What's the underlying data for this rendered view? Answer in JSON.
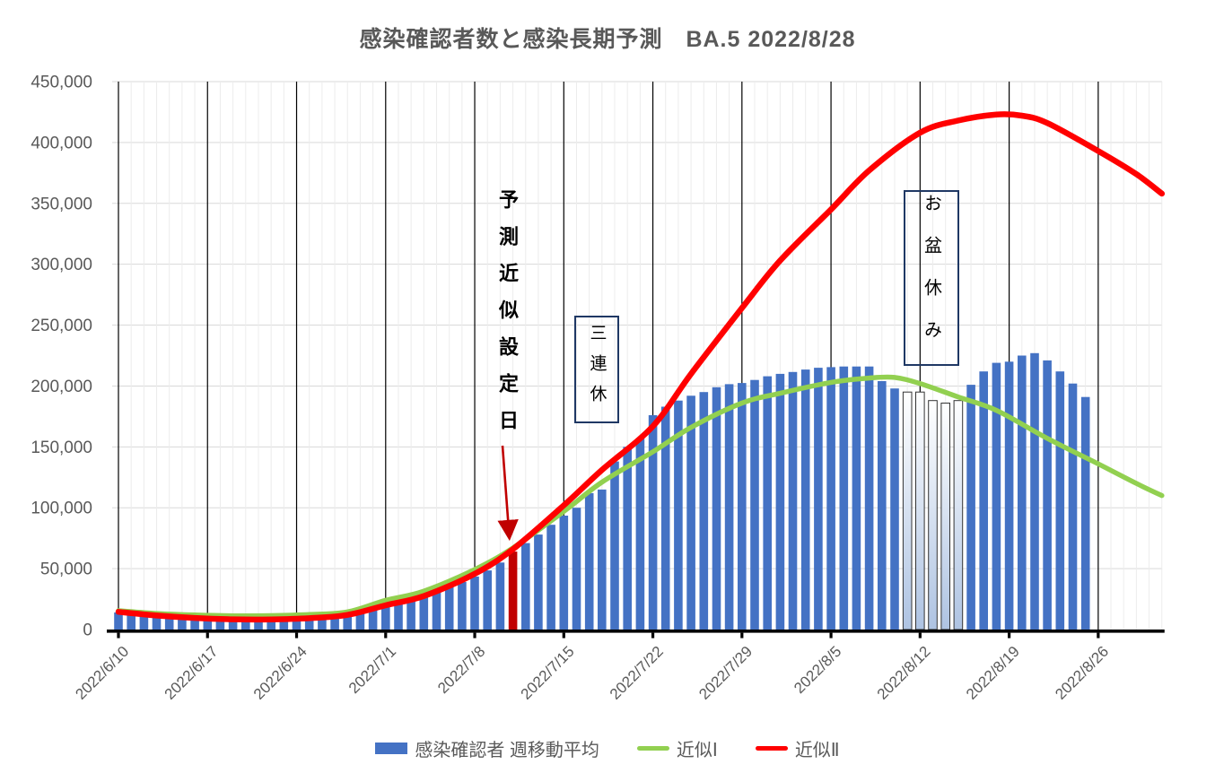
{
  "title": "感染確認者数と感染長期予測　BA.5 2022/8/28",
  "annotations": {
    "set_date_label": "予測近似設定日",
    "holiday3_label": "三連休",
    "obon_label": "お盆休み"
  },
  "legend": {
    "bars_label": "感染確認者 週移動平均",
    "approx1_label": "近似Ⅰ",
    "approx2_label": "近似Ⅱ"
  },
  "colors": {
    "bar": "#4472C4",
    "bar_holiday_top": "#FFFFFF",
    "bar_holiday_bottom": "#AEC3E2",
    "bar_holiday_border": "#333333",
    "highlight_bar": "#C00000",
    "approx1": "#92D050",
    "approx2": "#FF0000",
    "grid_major": "#000000",
    "grid_minor": "#ECECEC",
    "grid_horizontal": "#D9D9D9",
    "axis": "#000000",
    "axis_text": "#595959",
    "annotation_box_border": "#1F3864",
    "arrow": "#C00000"
  },
  "chart_data": {
    "type": "bar+line",
    "title": "感染確認者数と感染長期予測　BA.5 2022/8/28",
    "y_axis": {
      "min": 0,
      "max": 450000,
      "step": 50000,
      "tick_labels": [
        "0",
        "50,000",
        "100,000",
        "150,000",
        "200,000",
        "250,000",
        "300,000",
        "350,000",
        "400,000",
        "450,000"
      ]
    },
    "x_axis": {
      "tick_labels": [
        "2022/6/10",
        "2022/6/17",
        "2022/6/24",
        "2022/7/1",
        "2022/7/8",
        "2022/7/15",
        "2022/7/22",
        "2022/7/29",
        "2022/8/5",
        "2022/8/12",
        "2022/8/19",
        "2022/8/26"
      ],
      "days_per_tick": 7,
      "start_date": "2022/6/10",
      "line_end_day": 82
    },
    "bars": {
      "name": "感染確認者 週移動平均",
      "start_day": 0,
      "values": [
        14000,
        13300,
        12800,
        12300,
        11900,
        11600,
        11300,
        11100,
        10900,
        10800,
        10700,
        10700,
        10800,
        11000,
        11300,
        11800,
        12400,
        13100,
        14200,
        15800,
        17500,
        19800,
        22000,
        24500,
        27500,
        31000,
        35000,
        39000,
        43500,
        48500,
        55000,
        64000,
        71000,
        78000,
        86000,
        93500,
        100000,
        112000,
        115000,
        138000,
        150000,
        157000,
        176000,
        183000,
        188000,
        192000,
        195000,
        199000,
        201500,
        202500,
        205000,
        208000,
        210000,
        211500,
        213500,
        215000,
        215500,
        216000,
        216000,
        216000,
        204000,
        198000,
        195000,
        195000,
        188000,
        186000,
        188000,
        201000,
        212000,
        219000,
        220000,
        225000,
        227000,
        221000,
        212000,
        202000,
        191000
      ],
      "highlight": {
        "day": 31,
        "date": "2022/7/11"
      },
      "holiday_days": [
        62,
        63,
        64,
        65,
        66
      ],
      "holiday_dates": [
        "2022/8/11",
        "2022/8/12",
        "2022/8/13",
        "2022/8/14",
        "2022/8/15"
      ]
    },
    "lines": [
      {
        "name": "近似Ⅰ",
        "points": [
          [
            0,
            15500
          ],
          [
            3,
            13200
          ],
          [
            6,
            11900
          ],
          [
            9,
            11300
          ],
          [
            12,
            11400
          ],
          [
            15,
            12300
          ],
          [
            18,
            14500
          ],
          [
            21,
            24000
          ],
          [
            24,
            31500
          ],
          [
            28,
            49300
          ],
          [
            31,
            67000
          ],
          [
            35,
            97000
          ],
          [
            38,
            121000
          ],
          [
            42,
            146000
          ],
          [
            45,
            166000
          ],
          [
            49,
            186000
          ],
          [
            52,
            194000
          ],
          [
            56,
            203000
          ],
          [
            59,
            206500
          ],
          [
            61,
            207000
          ],
          [
            63,
            202000
          ],
          [
            66,
            191000
          ],
          [
            69,
            180000
          ],
          [
            73,
            157000
          ],
          [
            77,
            136000
          ],
          [
            80,
            120000
          ],
          [
            82,
            110000
          ]
        ]
      },
      {
        "name": "近似Ⅱ",
        "points": [
          [
            0,
            14500
          ],
          [
            3,
            11500
          ],
          [
            6,
            9500
          ],
          [
            9,
            8400
          ],
          [
            12,
            8300
          ],
          [
            15,
            9300
          ],
          [
            18,
            12000
          ],
          [
            21,
            19900
          ],
          [
            24,
            27500
          ],
          [
            28,
            45700
          ],
          [
            31,
            66000
          ],
          [
            35,
            102000
          ],
          [
            38,
            131000
          ],
          [
            42,
            167000
          ],
          [
            45,
            210000
          ],
          [
            49,
            264000
          ],
          [
            52,
            303000
          ],
          [
            56,
            345000
          ],
          [
            59,
            377000
          ],
          [
            63,
            408000
          ],
          [
            66,
            418000
          ],
          [
            69,
            423000
          ],
          [
            71,
            422000
          ],
          [
            73,
            416000
          ],
          [
            77,
            393000
          ],
          [
            80,
            374000
          ],
          [
            82,
            358000
          ]
        ]
      }
    ]
  }
}
